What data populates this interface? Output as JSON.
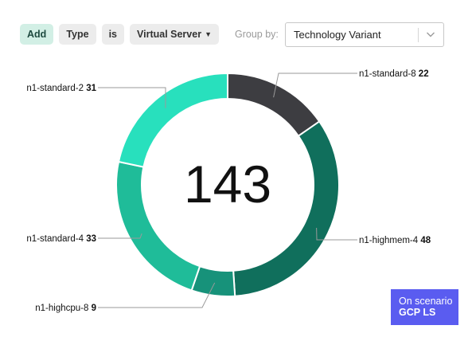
{
  "filters": {
    "add_label": "Add",
    "type_label": "Type",
    "operator_label": "is",
    "value_label": "Virtual Server",
    "value_icon": "chevron-down-icon"
  },
  "group_by": {
    "label": "Group by:",
    "value": "Technology Variant",
    "icon": "chevron-down-icon"
  },
  "chart_data": {
    "type": "pie",
    "total": "143",
    "slices": [
      {
        "name": "n1-standard-8",
        "value": 22,
        "color": "#3d3d41"
      },
      {
        "name": "n1-highmem-4",
        "value": 48,
        "color": "#106f5c"
      },
      {
        "name": "n1-highcpu-8",
        "value": 9,
        "color": "#17927a"
      },
      {
        "name": "n1-standard-4",
        "value": 33,
        "color": "#1fbc99"
      },
      {
        "name": "n1-standard-2",
        "value": 31,
        "color": "#28e0bd"
      }
    ]
  },
  "scenario": {
    "line1": "On scenario",
    "line2": "GCP LS"
  }
}
